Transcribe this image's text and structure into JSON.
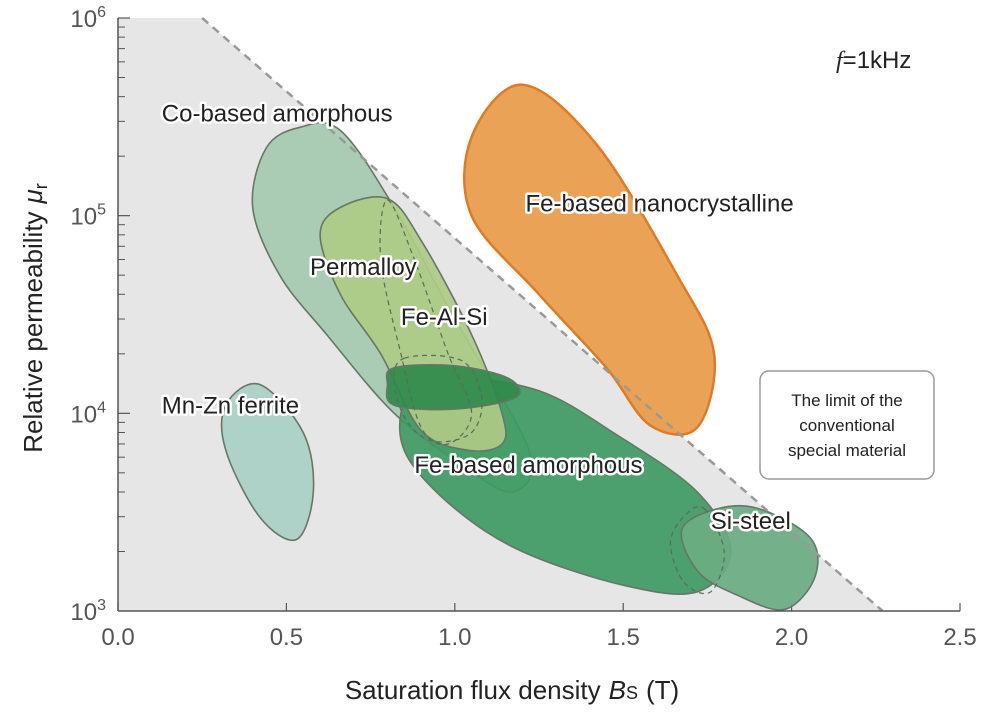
{
  "chart_data": {
    "type": "scatter",
    "title": "",
    "xlabel": "Saturation flux density",
    "xlabel_symbol": "B",
    "xlabel_sub": "S",
    "xlabel_unit": "(T)",
    "ylabel": "Relative permeability",
    "ylabel_symbol": "μ",
    "ylabel_sub": "r",
    "xlim": [
      0,
      2.5
    ],
    "ylim": [
      1000,
      1000000
    ],
    "y_scale": "log",
    "x_ticks": [
      "0.0",
      "0.5",
      "1.0",
      "1.5",
      "2.0",
      "2.5"
    ],
    "y_ticks": [
      {
        "base": "10",
        "exp": "3"
      },
      {
        "base": "10",
        "exp": "4"
      },
      {
        "base": "10",
        "exp": "5"
      },
      {
        "base": "10",
        "exp": "6"
      }
    ],
    "annotation_freq": {
      "symbol": "f",
      "text": "=1kHz"
    },
    "limit_line": {
      "from": [
        0.25,
        1000000
      ],
      "to": [
        2.27,
        1000
      ],
      "style": "dashed"
    },
    "limit_note": [
      "The limit of the",
      "conventional",
      "special material"
    ],
    "series": [
      {
        "name": "Co-based amorphous",
        "color": "#9fc7ab"
      },
      {
        "name": "Permalloy",
        "color": "#aecb85"
      },
      {
        "name": "Fe-based amorphous",
        "color": "#3e9a63"
      },
      {
        "name": "Fe-Al-Si",
        "color": "#2f8a4b"
      },
      {
        "name": "Mn-Zn ferrite",
        "color": "#a9d0c6"
      },
      {
        "name": "Fe-based nanocrystalline",
        "color": "#e79a48"
      },
      {
        "name": "Si-steel",
        "color": "#6aac82"
      }
    ]
  }
}
